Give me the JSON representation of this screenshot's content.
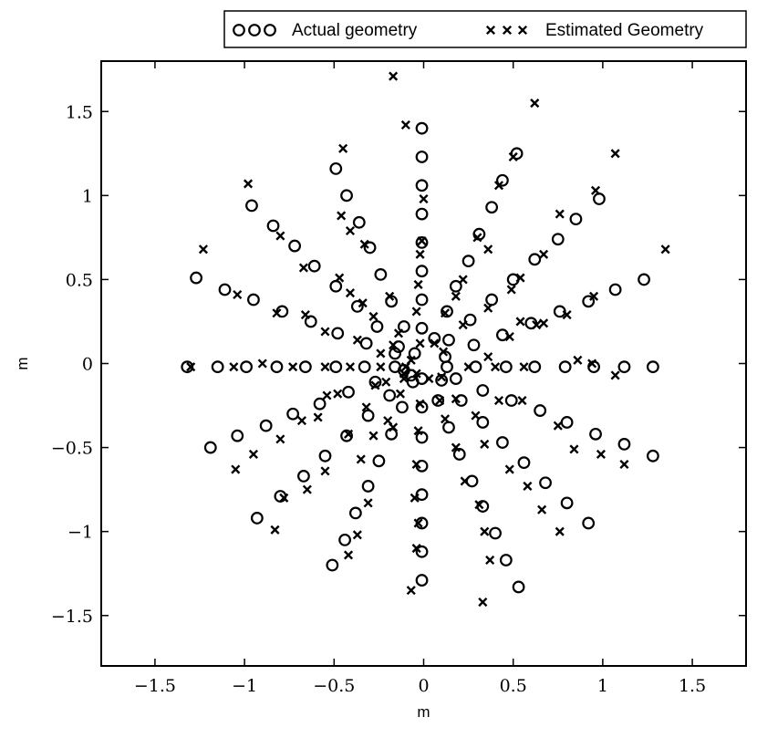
{
  "chart_data": {
    "type": "scatter",
    "title": "",
    "xlabel": "m",
    "ylabel": "m",
    "xlim": [
      -1.8,
      1.8
    ],
    "ylim": [
      -1.8,
      1.8
    ],
    "xticks": [
      -1.5,
      -1,
      -0.5,
      0,
      0.5,
      1,
      1.5
    ],
    "yticks": [
      -1.5,
      -1,
      -0.5,
      0,
      0.5,
      1,
      1.5
    ],
    "xtick_labels": [
      "−1.5",
      "−1",
      "−0.5",
      "0",
      "0.5",
      "1",
      "1.5"
    ],
    "ytick_labels": [
      "−1.5",
      "−1",
      "−0.5",
      "0",
      "0.5",
      "1",
      "1.5"
    ],
    "grid": false,
    "legend_position": "top-right, outside the axes",
    "marker_color": "#000000",
    "series": [
      {
        "name": "Actual geometry",
        "marker": "circle",
        "points": [
          [
            -0.01,
            1.4
          ],
          [
            -0.01,
            1.23
          ],
          [
            -0.01,
            1.06
          ],
          [
            -0.01,
            0.89
          ],
          [
            -0.01,
            0.72
          ],
          [
            -0.01,
            0.55
          ],
          [
            -0.01,
            0.38
          ],
          [
            -0.01,
            0.21
          ],
          [
            0.52,
            1.25
          ],
          [
            0.44,
            1.09
          ],
          [
            0.38,
            0.93
          ],
          [
            0.31,
            0.77
          ],
          [
            0.25,
            0.61
          ],
          [
            0.18,
            0.46
          ],
          [
            0.13,
            0.31
          ],
          [
            0.06,
            0.15
          ],
          [
            0.98,
            0.98
          ],
          [
            0.85,
            0.86
          ],
          [
            0.75,
            0.74
          ],
          [
            0.62,
            0.62
          ],
          [
            0.5,
            0.5
          ],
          [
            0.38,
            0.38
          ],
          [
            0.26,
            0.26
          ],
          [
            0.14,
            0.14
          ],
          [
            1.23,
            0.5
          ],
          [
            1.07,
            0.44
          ],
          [
            0.92,
            0.37
          ],
          [
            0.76,
            0.31
          ],
          [
            0.6,
            0.24
          ],
          [
            0.44,
            0.17
          ],
          [
            0.28,
            0.11
          ],
          [
            0.12,
            0.04
          ],
          [
            1.28,
            -0.02
          ],
          [
            1.12,
            -0.02
          ],
          [
            0.95,
            -0.02
          ],
          [
            0.79,
            -0.02
          ],
          [
            0.62,
            -0.02
          ],
          [
            0.46,
            -0.02
          ],
          [
            0.29,
            -0.02
          ],
          [
            0.13,
            -0.02
          ],
          [
            1.28,
            -0.55
          ],
          [
            1.12,
            -0.48
          ],
          [
            0.96,
            -0.42
          ],
          [
            0.8,
            -0.35
          ],
          [
            0.65,
            -0.28
          ],
          [
            0.49,
            -0.22
          ],
          [
            0.33,
            -0.16
          ],
          [
            0.18,
            -0.09
          ],
          [
            0.92,
            -0.95
          ],
          [
            0.8,
            -0.83
          ],
          [
            0.68,
            -0.71
          ],
          [
            0.56,
            -0.59
          ],
          [
            0.44,
            -0.47
          ],
          [
            0.33,
            -0.35
          ],
          [
            0.21,
            -0.22
          ],
          [
            0.1,
            -0.1
          ],
          [
            0.53,
            -1.33
          ],
          [
            0.46,
            -1.17
          ],
          [
            0.4,
            -1.01
          ],
          [
            0.33,
            -0.85
          ],
          [
            0.27,
            -0.7
          ],
          [
            0.2,
            -0.54
          ],
          [
            0.14,
            -0.38
          ],
          [
            0.08,
            -0.22
          ],
          [
            -0.01,
            -1.29
          ],
          [
            -0.01,
            -1.12
          ],
          [
            -0.01,
            -0.95
          ],
          [
            -0.01,
            -0.78
          ],
          [
            -0.01,
            -0.61
          ],
          [
            -0.01,
            -0.44
          ],
          [
            -0.01,
            -0.26
          ],
          [
            -0.01,
            -0.09
          ],
          [
            -0.51,
            -1.2
          ],
          [
            -0.44,
            -1.05
          ],
          [
            -0.38,
            -0.89
          ],
          [
            -0.31,
            -0.73
          ],
          [
            -0.25,
            -0.58
          ],
          [
            -0.18,
            -0.42
          ],
          [
            -0.12,
            -0.26
          ],
          [
            -0.06,
            -0.11
          ],
          [
            -0.93,
            -0.92
          ],
          [
            -0.8,
            -0.79
          ],
          [
            -0.67,
            -0.67
          ],
          [
            -0.55,
            -0.55
          ],
          [
            -0.43,
            -0.43
          ],
          [
            -0.31,
            -0.31
          ],
          [
            -0.19,
            -0.19
          ],
          [
            -0.07,
            -0.07
          ],
          [
            -1.19,
            -0.5
          ],
          [
            -1.04,
            -0.43
          ],
          [
            -0.88,
            -0.37
          ],
          [
            -0.73,
            -0.3
          ],
          [
            -0.58,
            -0.24
          ],
          [
            -0.42,
            -0.17
          ],
          [
            -0.27,
            -0.11
          ],
          [
            -0.11,
            -0.04
          ],
          [
            -1.32,
            -0.02
          ],
          [
            -1.15,
            -0.02
          ],
          [
            -0.99,
            -0.02
          ],
          [
            -0.82,
            -0.02
          ],
          [
            -0.66,
            -0.02
          ],
          [
            -0.49,
            -0.02
          ],
          [
            -0.33,
            -0.02
          ],
          [
            -0.16,
            -0.02
          ],
          [
            -1.27,
            0.51
          ],
          [
            -1.11,
            0.44
          ],
          [
            -0.95,
            0.38
          ],
          [
            -0.79,
            0.31
          ],
          [
            -0.63,
            0.25
          ],
          [
            -0.48,
            0.18
          ],
          [
            -0.32,
            0.12
          ],
          [
            -0.16,
            0.06
          ],
          [
            -0.96,
            0.94
          ],
          [
            -0.84,
            0.82
          ],
          [
            -0.72,
            0.7
          ],
          [
            -0.61,
            0.58
          ],
          [
            -0.49,
            0.46
          ],
          [
            -0.37,
            0.34
          ],
          [
            -0.26,
            0.22
          ],
          [
            -0.14,
            0.1
          ],
          [
            -0.49,
            1.16
          ],
          [
            -0.43,
            1.0
          ],
          [
            -0.36,
            0.84
          ],
          [
            -0.3,
            0.69
          ],
          [
            -0.24,
            0.53
          ],
          [
            -0.18,
            0.37
          ],
          [
            -0.11,
            0.22
          ],
          [
            -0.05,
            0.06
          ]
        ]
      },
      {
        "name": "Estimated Geometry",
        "marker": "x",
        "points": [
          [
            -0.17,
            1.71
          ],
          [
            -0.1,
            1.42
          ],
          [
            0.62,
            1.55
          ],
          [
            1.07,
            1.25
          ],
          [
            0.5,
            1.23
          ],
          [
            0.42,
            1.06
          ],
          [
            0.96,
            1.03
          ],
          [
            -0.45,
            1.28
          ],
          [
            -0.98,
            1.07
          ],
          [
            -1.23,
            0.68
          ],
          [
            1.35,
            0.68
          ],
          [
            0.76,
            0.89
          ],
          [
            0.67,
            0.65
          ],
          [
            0.54,
            0.51
          ],
          [
            0.3,
            0.75
          ],
          [
            0.0,
            0.98
          ],
          [
            -0.01,
            0.73
          ],
          [
            -0.02,
            0.65
          ],
          [
            -0.03,
            0.47
          ],
          [
            -0.04,
            0.31
          ],
          [
            -0.02,
            0.12
          ],
          [
            0.12,
            0.3
          ],
          [
            0.18,
            0.4
          ],
          [
            0.22,
            0.5
          ],
          [
            0.36,
            0.68
          ],
          [
            -0.46,
            0.88
          ],
          [
            -0.41,
            0.79
          ],
          [
            -0.33,
            0.71
          ],
          [
            -0.47,
            0.51
          ],
          [
            -0.41,
            0.42
          ],
          [
            -0.34,
            0.36
          ],
          [
            -0.28,
            0.28
          ],
          [
            -0.19,
            0.4
          ],
          [
            -0.14,
            0.18
          ],
          [
            -0.8,
            0.76
          ],
          [
            -0.67,
            0.57
          ],
          [
            -0.82,
            0.3
          ],
          [
            -0.66,
            0.29
          ],
          [
            -0.55,
            0.19
          ],
          [
            -0.37,
            0.14
          ],
          [
            -1.04,
            0.41
          ],
          [
            -1.3,
            -0.02
          ],
          [
            -1.06,
            -0.02
          ],
          [
            -0.9,
            0.0
          ],
          [
            -0.73,
            -0.02
          ],
          [
            -0.55,
            -0.02
          ],
          [
            -0.41,
            -0.02
          ],
          [
            -0.24,
            -0.02
          ],
          [
            -0.1,
            -0.02
          ],
          [
            0.06,
            0.12
          ],
          [
            0.11,
            0.07
          ],
          [
            0.22,
            0.23
          ],
          [
            0.36,
            0.33
          ],
          [
            0.49,
            0.44
          ],
          [
            0.63,
            0.23
          ],
          [
            0.48,
            0.16
          ],
          [
            0.36,
            0.04
          ],
          [
            0.67,
            0.24
          ],
          [
            0.8,
            0.29
          ],
          [
            0.95,
            0.4
          ],
          [
            0.86,
            0.02
          ],
          [
            0.56,
            -0.02
          ],
          [
            0.4,
            -0.02
          ],
          [
            0.25,
            -0.02
          ],
          [
            0.94,
            0.0
          ],
          [
            1.07,
            -0.07
          ],
          [
            0.54,
            0.25
          ],
          [
            0.42,
            -0.22
          ],
          [
            0.55,
            -0.22
          ],
          [
            0.75,
            -0.37
          ],
          [
            0.84,
            -0.51
          ],
          [
            0.99,
            -0.54
          ],
          [
            1.12,
            -0.6
          ],
          [
            0.48,
            -0.63
          ],
          [
            0.34,
            -0.48
          ],
          [
            0.29,
            -0.31
          ],
          [
            0.09,
            -0.22
          ],
          [
            0.18,
            -0.21
          ],
          [
            0.66,
            -0.87
          ],
          [
            0.76,
            -1.0
          ],
          [
            0.58,
            -0.73
          ],
          [
            0.18,
            -0.5
          ],
          [
            0.34,
            -1.0
          ],
          [
            0.37,
            -1.17
          ],
          [
            0.33,
            -1.42
          ],
          [
            0.31,
            -0.84
          ],
          [
            0.23,
            -0.7
          ],
          [
            0.12,
            -0.33
          ],
          [
            -0.07,
            -1.35
          ],
          [
            -0.04,
            -1.1
          ],
          [
            -0.03,
            -0.95
          ],
          [
            -0.05,
            -0.8
          ],
          [
            -0.04,
            -0.6
          ],
          [
            -0.03,
            -0.4
          ],
          [
            -0.02,
            -0.24
          ],
          [
            0.03,
            -0.09
          ],
          [
            0.1,
            -0.08
          ],
          [
            -0.04,
            -0.06
          ],
          [
            -0.13,
            -0.18
          ],
          [
            -0.2,
            -0.34
          ],
          [
            -0.28,
            -0.43
          ],
          [
            -0.35,
            -0.57
          ],
          [
            -0.31,
            -0.83
          ],
          [
            -0.37,
            -1.02
          ],
          [
            -0.42,
            -1.14
          ],
          [
            -0.55,
            -0.64
          ],
          [
            -0.65,
            -0.75
          ],
          [
            -0.68,
            -0.34
          ],
          [
            -0.54,
            -0.19
          ],
          [
            -0.42,
            -0.42
          ],
          [
            -0.32,
            -0.26
          ],
          [
            -0.17,
            -0.38
          ],
          [
            -0.83,
            -0.99
          ],
          [
            -0.95,
            -0.54
          ],
          [
            -1.05,
            -0.63
          ],
          [
            -0.8,
            -0.45
          ],
          [
            -0.78,
            -0.8
          ],
          [
            -0.59,
            -0.32
          ],
          [
            -0.48,
            -0.18
          ],
          [
            -0.27,
            -0.13
          ],
          [
            -0.21,
            -0.11
          ],
          [
            -0.11,
            -0.09
          ],
          [
            -0.24,
            0.06
          ],
          [
            -0.17,
            0.11
          ],
          [
            -0.07,
            0.02
          ],
          [
            -0.11,
            -0.06
          ]
        ]
      }
    ]
  },
  "legend": {
    "items": [
      {
        "label": "Actual geometry",
        "marker": "circle"
      },
      {
        "label": "Estimated Geometry",
        "marker": "x"
      }
    ]
  }
}
